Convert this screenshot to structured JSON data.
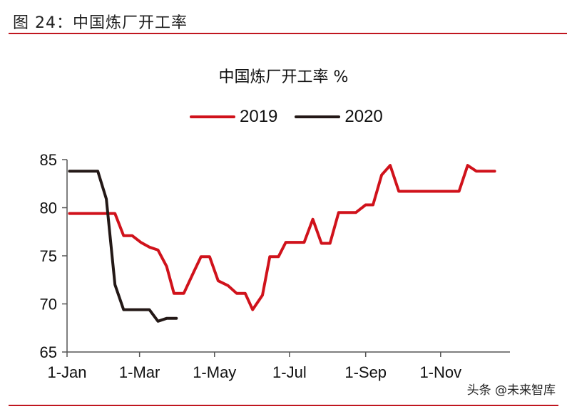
{
  "header": {
    "figure_title": "图 24：中国炼厂开工率"
  },
  "watermark": "头条 @未来智库",
  "colors": {
    "accent_rule": "#c0161f",
    "series_2019": "#d0121b",
    "series_2020": "#231816",
    "axis": "#555555"
  },
  "chart_data": {
    "type": "line",
    "title": "中国炼厂开工率 %",
    "xlabel": "",
    "ylabel": "",
    "ylim": [
      65,
      85
    ],
    "yticks": [
      65,
      70,
      75,
      80,
      85
    ],
    "xticks": [
      "1-Jan",
      "1-Mar",
      "1-May",
      "1-Jul",
      "1-Sep",
      "1-Nov"
    ],
    "grid": false,
    "legend_position": "top",
    "x_unit": "day_of_year",
    "series": [
      {
        "name": "2019",
        "color": "#d0121b",
        "points": [
          [
            2,
            79.4
          ],
          [
            39,
            79.4
          ],
          [
            46,
            77.1
          ],
          [
            53,
            77.1
          ],
          [
            60,
            76.4
          ],
          [
            67,
            75.9
          ],
          [
            74,
            75.6
          ],
          [
            81,
            73.9
          ],
          [
            87,
            71.1
          ],
          [
            95,
            71.1
          ],
          [
            103,
            73.3
          ],
          [
            109,
            74.9
          ],
          [
            116,
            74.9
          ],
          [
            123,
            72.4
          ],
          [
            131,
            71.9
          ],
          [
            138,
            71.1
          ],
          [
            145,
            71.1
          ],
          [
            151,
            69.4
          ],
          [
            159,
            70.9
          ],
          [
            165,
            74.9
          ],
          [
            172,
            74.9
          ],
          [
            178,
            76.4
          ],
          [
            193,
            76.4
          ],
          [
            200,
            78.8
          ],
          [
            207,
            76.3
          ],
          [
            214,
            76.3
          ],
          [
            221,
            79.5
          ],
          [
            235,
            79.5
          ],
          [
            243,
            80.3
          ],
          [
            249,
            80.3
          ],
          [
            256,
            83.4
          ],
          [
            263,
            84.4
          ],
          [
            270,
            81.7
          ],
          [
            319,
            81.7
          ],
          [
            326,
            84.4
          ],
          [
            333,
            83.8
          ],
          [
            348,
            83.8
          ]
        ]
      },
      {
        "name": "2020",
        "color": "#231816",
        "points": [
          [
            2,
            83.8
          ],
          [
            25,
            83.8
          ],
          [
            32,
            80.9
          ],
          [
            39,
            72.0
          ],
          [
            46,
            69.4
          ],
          [
            67,
            69.4
          ],
          [
            74,
            68.2
          ],
          [
            81,
            68.5
          ],
          [
            89,
            68.5
          ]
        ]
      }
    ]
  }
}
